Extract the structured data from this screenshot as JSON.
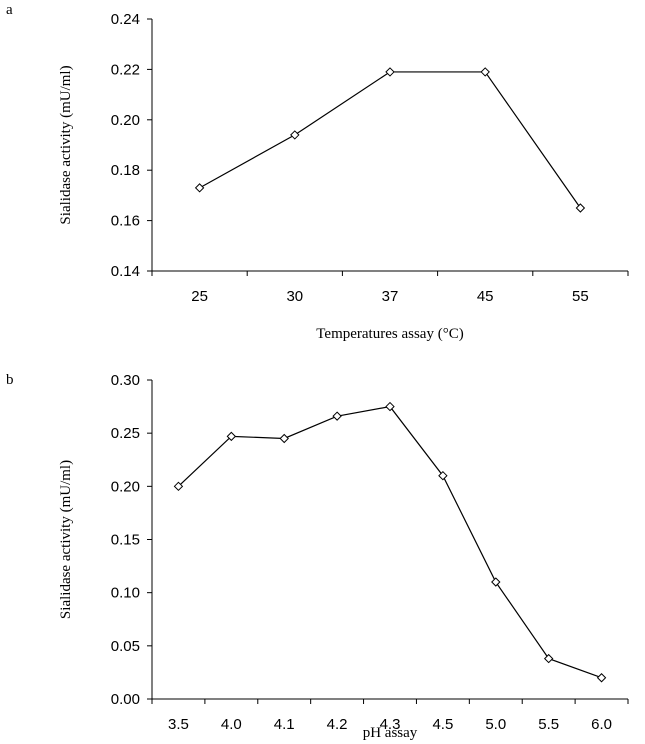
{
  "panels": [
    {
      "label": "a"
    },
    {
      "label": "b"
    }
  ],
  "chart_data": [
    {
      "type": "line",
      "panel": "a",
      "categories": [
        "25",
        "30",
        "37",
        "45",
        "55"
      ],
      "values": [
        0.173,
        0.194,
        0.219,
        0.219,
        0.165
      ],
      "xlabel": "Temperatures assay (°C)",
      "ylabel": "Sialidase activity (mU/ml)",
      "ylim": [
        0.14,
        0.24
      ],
      "yticks": [
        "0.14",
        "0.16",
        "0.18",
        "0.20",
        "0.22",
        "0.24"
      ],
      "marker": "diamond-open",
      "grid": false,
      "line_color": "#000000"
    },
    {
      "type": "line",
      "panel": "b",
      "categories": [
        "3.5",
        "4.0",
        "4.1",
        "4.2",
        "4.3",
        "4.5",
        "5.0",
        "5.5",
        "6.0"
      ],
      "values": [
        0.2,
        0.247,
        0.245,
        0.266,
        0.275,
        0.21,
        0.11,
        0.038,
        0.02
      ],
      "xlabel": "pH assay",
      "ylabel": "Sialidase activity (mU/ml)",
      "ylim": [
        0.0,
        0.3
      ],
      "yticks": [
        "0.00",
        "0.05",
        "0.10",
        "0.15",
        "0.20",
        "0.25",
        "0.30"
      ],
      "marker": "diamond-open",
      "grid": false,
      "line_color": "#000000"
    }
  ]
}
